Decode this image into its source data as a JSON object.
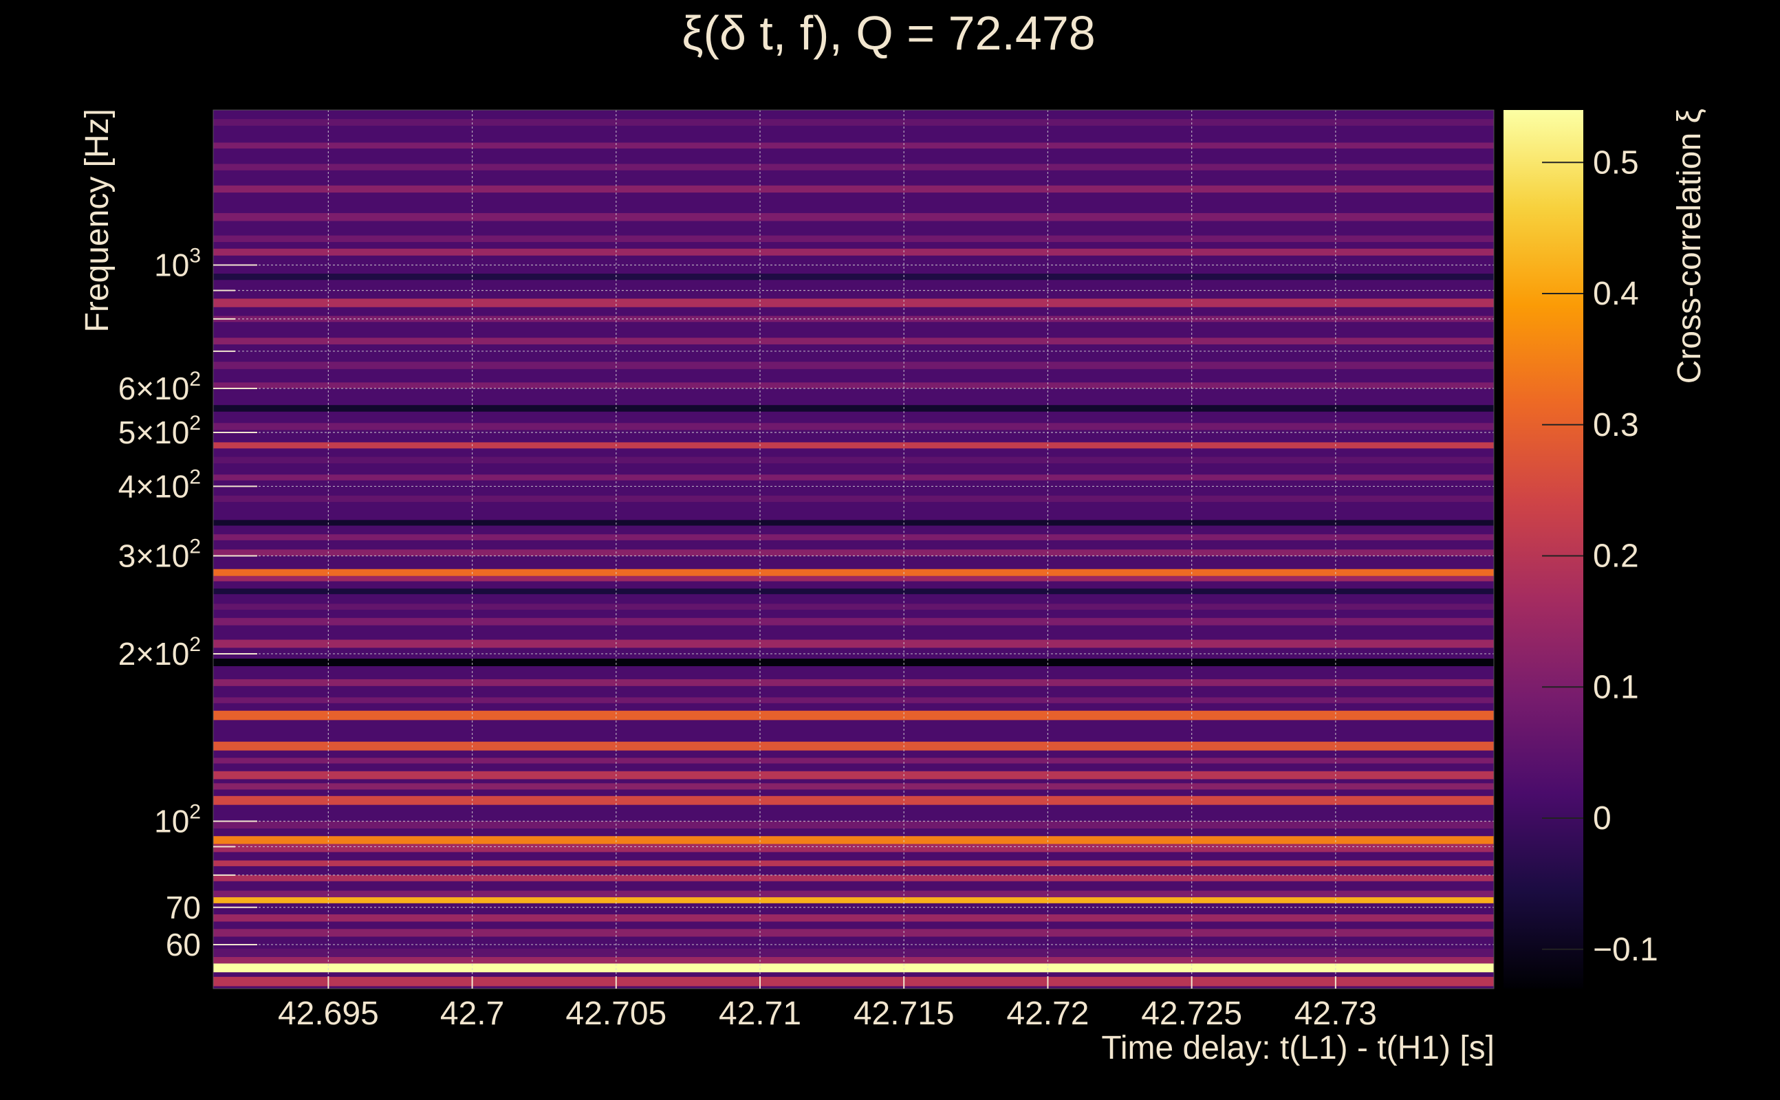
{
  "chart_data": {
    "type": "heatmap",
    "title": "ξ(δ t, f), Q = 72.478",
    "xlabel": "Time delay: t(L1) - t(H1) [s]",
    "ylabel": "Frequency [Hz]",
    "colorbar_label": "Cross-correlation ξ",
    "x_range": [
      42.691,
      42.7355
    ],
    "y_range": [
      50,
      1900
    ],
    "y_scale": "log",
    "grid": true,
    "x_ticks": [
      {
        "value": 42.695,
        "label": "42.695"
      },
      {
        "value": 42.7,
        "label": "42.7"
      },
      {
        "value": 42.705,
        "label": "42.705"
      },
      {
        "value": 42.71,
        "label": "42.71"
      },
      {
        "value": 42.715,
        "label": "42.715"
      },
      {
        "value": 42.72,
        "label": "42.72"
      },
      {
        "value": 42.725,
        "label": "42.725"
      },
      {
        "value": 42.73,
        "label": "42.73"
      }
    ],
    "y_ticks": [
      {
        "value": 60,
        "label": "60"
      },
      {
        "value": 70,
        "label": "70"
      },
      {
        "value": 100,
        "label": "10",
        "exp": "2"
      },
      {
        "value": 200,
        "label": "2×10",
        "exp": "2"
      },
      {
        "value": 300,
        "label": "3×10",
        "exp": "2"
      },
      {
        "value": 400,
        "label": "4×10",
        "exp": "2"
      },
      {
        "value": 500,
        "label": "5×10",
        "exp": "2"
      },
      {
        "value": 600,
        "label": "6×10",
        "exp": "2"
      },
      {
        "value": 1000,
        "label": "10",
        "exp": "3"
      }
    ],
    "y_minor_ticks": [
      80,
      90,
      700,
      800,
      900
    ],
    "colorbar": {
      "range": [
        -0.13,
        0.54
      ],
      "ticks": [
        {
          "value": -0.1,
          "label": "−0.1"
        },
        {
          "value": 0,
          "label": "0"
        },
        {
          "value": 0.1,
          "label": "0.1"
        },
        {
          "value": 0.2,
          "label": "0.2"
        },
        {
          "value": 0.3,
          "label": "0.3"
        },
        {
          "value": 0.4,
          "label": "0.4"
        },
        {
          "value": 0.5,
          "label": "0.5"
        }
      ],
      "colormap": [
        "#000004",
        "#1b0c41",
        "#4a0c6b",
        "#781c6d",
        "#a52c60",
        "#cf4446",
        "#ed6925",
        "#fb9b06",
        "#f7d13d",
        "#fcffa4"
      ]
    },
    "bands": [
      {
        "f_low": 50.5,
        "f_high": 52.5,
        "value": 0.2
      },
      {
        "f_low": 53.5,
        "f_high": 55.5,
        "value": 0.54
      },
      {
        "f_low": 55.5,
        "f_high": 57,
        "value": 0.15
      },
      {
        "f_low": 57,
        "f_high": 59,
        "value": 0.05
      },
      {
        "f_low": 62,
        "f_high": 64,
        "value": 0.12
      },
      {
        "f_low": 66,
        "f_high": 68,
        "value": 0.15
      },
      {
        "f_low": 71.2,
        "f_high": 73,
        "value": 0.42
      },
      {
        "f_low": 73,
        "f_high": 75,
        "value": 0.1
      },
      {
        "f_low": 78,
        "f_high": 80,
        "value": 0.18
      },
      {
        "f_low": 83,
        "f_high": 85,
        "value": 0.2
      },
      {
        "f_low": 88,
        "f_high": 91,
        "value": 0.16
      },
      {
        "f_low": 91,
        "f_high": 94,
        "value": 0.35
      },
      {
        "f_low": 97,
        "f_high": 100,
        "value": 0.08
      },
      {
        "f_low": 107,
        "f_high": 111,
        "value": 0.25
      },
      {
        "f_low": 114,
        "f_high": 117,
        "value": 0.12
      },
      {
        "f_low": 119,
        "f_high": 123,
        "value": 0.2
      },
      {
        "f_low": 127,
        "f_high": 130,
        "value": 0.1
      },
      {
        "f_low": 134,
        "f_high": 139,
        "value": 0.28
      },
      {
        "f_low": 152,
        "f_high": 158,
        "value": 0.3
      },
      {
        "f_low": 163,
        "f_high": 167,
        "value": 0.08
      },
      {
        "f_low": 175,
        "f_high": 180,
        "value": 0.12
      },
      {
        "f_low": 190,
        "f_high": 196,
        "value": -0.12
      },
      {
        "f_low": 205,
        "f_high": 212,
        "value": 0.15
      },
      {
        "f_low": 225,
        "f_high": 232,
        "value": 0.1
      },
      {
        "f_low": 240,
        "f_high": 246,
        "value": 0.06
      },
      {
        "f_low": 256,
        "f_high": 262,
        "value": -0.06
      },
      {
        "f_low": 270,
        "f_high": 276,
        "value": 0.15
      },
      {
        "f_low": 276,
        "f_high": 284,
        "value": 0.32
      },
      {
        "f_low": 300,
        "f_high": 308,
        "value": 0.12
      },
      {
        "f_low": 320,
        "f_high": 328,
        "value": 0.1
      },
      {
        "f_low": 340,
        "f_high": 348,
        "value": -0.08
      },
      {
        "f_low": 375,
        "f_high": 385,
        "value": 0.06
      },
      {
        "f_low": 410,
        "f_high": 420,
        "value": 0.1
      },
      {
        "f_low": 440,
        "f_high": 452,
        "value": 0.05
      },
      {
        "f_low": 468,
        "f_high": 480,
        "value": 0.22
      },
      {
        "f_low": 505,
        "f_high": 520,
        "value": 0.08
      },
      {
        "f_low": 545,
        "f_high": 560,
        "value": -0.08
      },
      {
        "f_low": 600,
        "f_high": 615,
        "value": 0.1
      },
      {
        "f_low": 650,
        "f_high": 670,
        "value": 0.08
      },
      {
        "f_low": 720,
        "f_high": 740,
        "value": 0.12
      },
      {
        "f_low": 790,
        "f_high": 810,
        "value": 0.1
      },
      {
        "f_low": 840,
        "f_high": 870,
        "value": 0.18
      },
      {
        "f_low": 940,
        "f_high": 965,
        "value": -0.05
      },
      {
        "f_low": 1040,
        "f_high": 1070,
        "value": 0.15
      },
      {
        "f_low": 1100,
        "f_high": 1130,
        "value": 0.08
      },
      {
        "f_low": 1200,
        "f_high": 1240,
        "value": 0.1
      },
      {
        "f_low": 1350,
        "f_high": 1390,
        "value": 0.12
      },
      {
        "f_low": 1480,
        "f_high": 1520,
        "value": 0.08
      },
      {
        "f_low": 1620,
        "f_high": 1660,
        "value": 0.1
      },
      {
        "f_low": 1780,
        "f_high": 1830,
        "value": 0.06
      }
    ]
  }
}
